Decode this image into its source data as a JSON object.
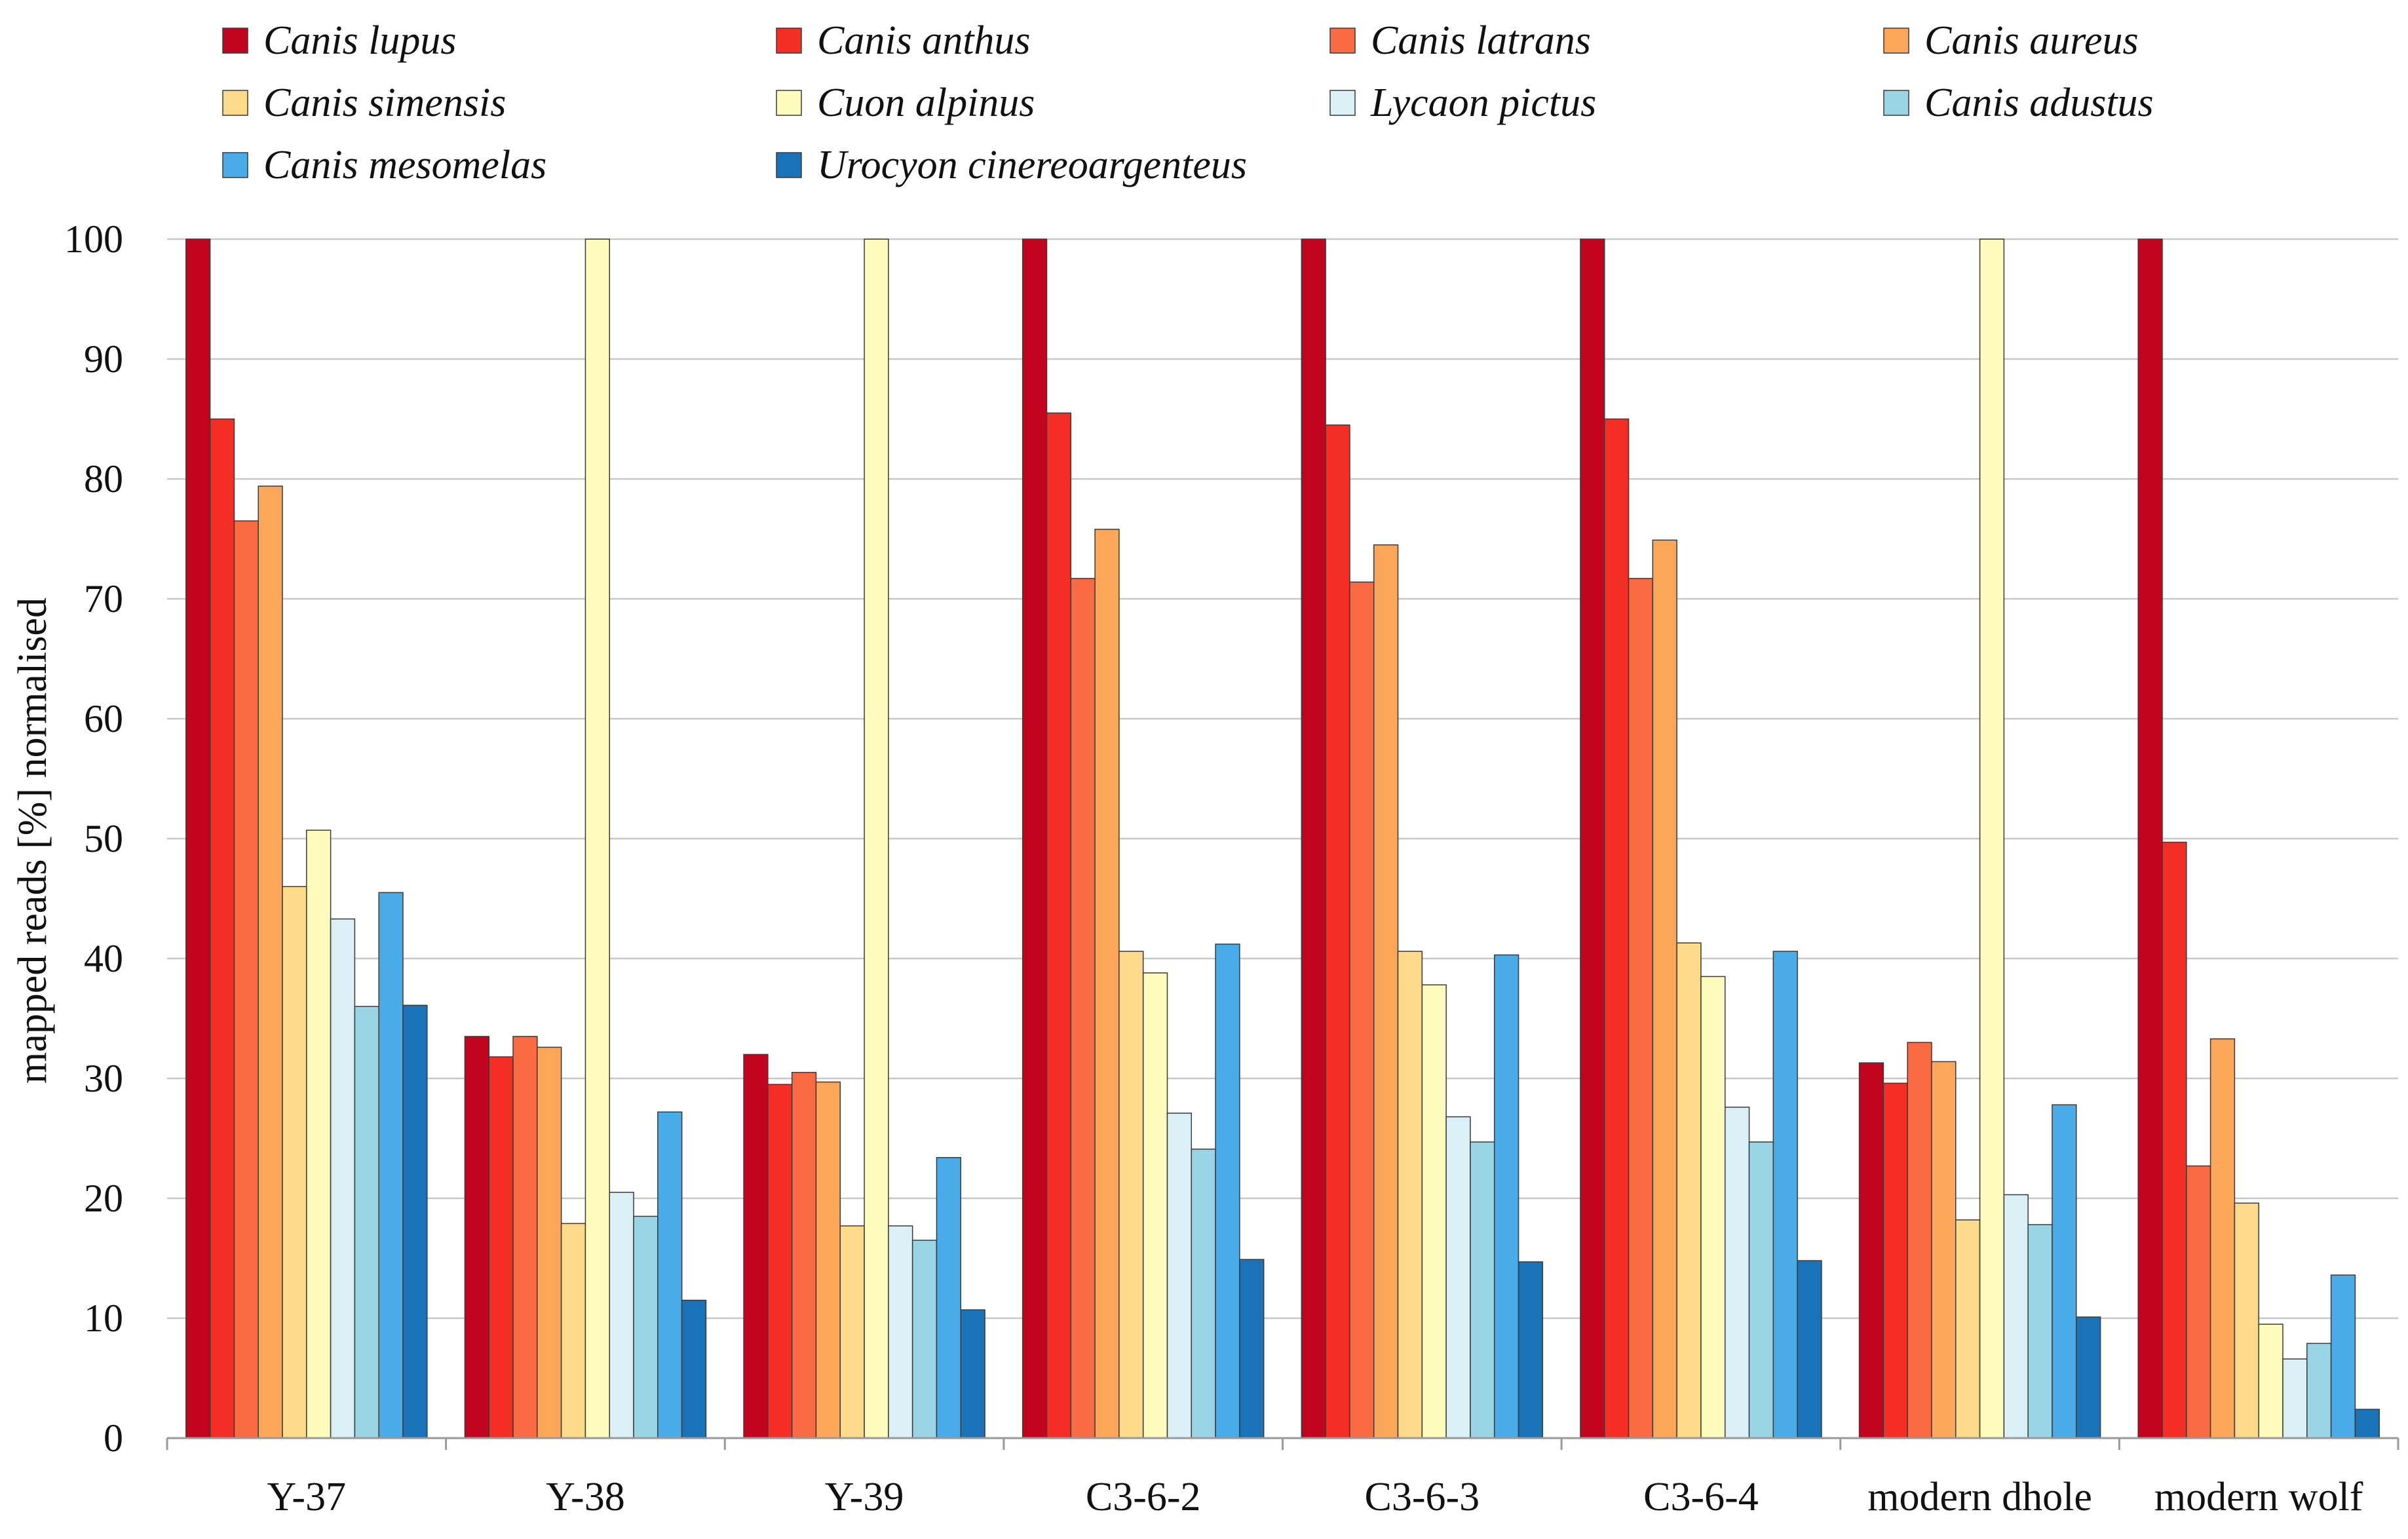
{
  "chart_data": {
    "type": "bar",
    "title": "",
    "xlabel": "",
    "ylabel": "mapped reads [%] normalised",
    "ylim": [
      0,
      100
    ],
    "yticks": [
      0,
      10,
      20,
      30,
      40,
      50,
      60,
      70,
      80,
      90,
      100
    ],
    "grid": true,
    "legend_position": "top",
    "categories": [
      "Y-37",
      "Y-38",
      "Y-39",
      "C3-6-2",
      "C3-6-3",
      "C3-6-4",
      "modern dhole",
      "modern wolf"
    ],
    "series": [
      {
        "name": "Canis lupus",
        "color": "#c2041f",
        "values": [
          100,
          33.5,
          32,
          100,
          100,
          100,
          31.3,
          100
        ]
      },
      {
        "name": "Canis anthus",
        "color": "#f42e24",
        "values": [
          85,
          31.8,
          29.5,
          85.5,
          84.5,
          85,
          29.6,
          49.7
        ]
      },
      {
        "name": "Canis latrans",
        "color": "#f96a43",
        "values": [
          76.5,
          33.5,
          30.5,
          71.7,
          71.4,
          71.7,
          33,
          22.7
        ]
      },
      {
        "name": "Canis aureus",
        "color": "#fca65a",
        "values": [
          79.4,
          32.6,
          29.7,
          75.8,
          74.5,
          74.9,
          31.4,
          33.3
        ]
      },
      {
        "name": "Canis simensis",
        "color": "#fdd98a",
        "values": [
          46,
          17.9,
          17.7,
          40.6,
          40.6,
          41.3,
          18.2,
          19.6
        ]
      },
      {
        "name": "Cuon alpinus",
        "color": "#fefcbd",
        "values": [
          50.7,
          100,
          100,
          38.8,
          37.8,
          38.5,
          100,
          9.5
        ]
      },
      {
        "name": "Lycaon pictus",
        "color": "#daf0f6",
        "values": [
          43.3,
          20.5,
          17.7,
          27.1,
          26.8,
          27.6,
          20.3,
          6.6
        ]
      },
      {
        "name": "Canis adustus",
        "color": "#9ad5e6",
        "values": [
          36,
          18.5,
          16.5,
          24.1,
          24.7,
          24.7,
          17.8,
          7.9
        ]
      },
      {
        "name": "Canis mesomelas",
        "color": "#4aabe9",
        "values": [
          45.5,
          27.2,
          23.4,
          41.2,
          40.3,
          40.6,
          27.8,
          13.6
        ]
      },
      {
        "name": "Urocyon cinereoargenteus",
        "color": "#1a72b8",
        "values": [
          36.1,
          11.5,
          10.7,
          14.9,
          14.7,
          14.8,
          10.1,
          2.4
        ]
      }
    ]
  }
}
